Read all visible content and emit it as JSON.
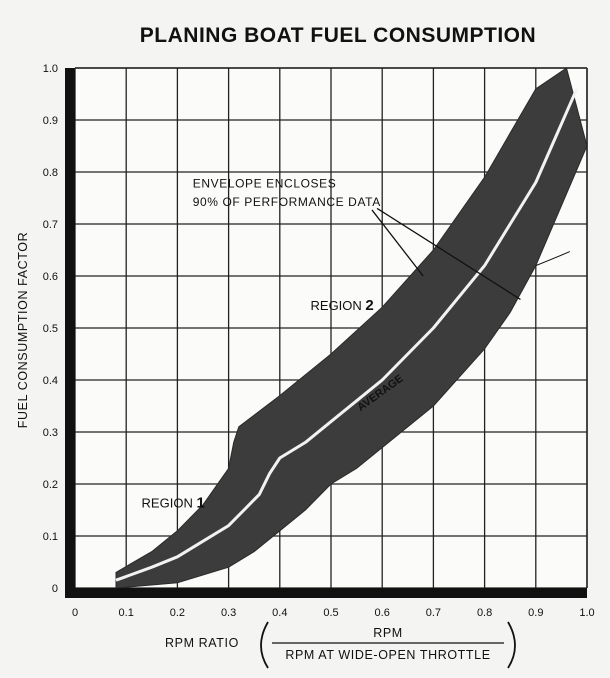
{
  "chart_data": {
    "type": "area",
    "title": "PLANING BOAT FUEL CONSUMPTION",
    "ylabel": "FUEL CONSUMPTION FACTOR",
    "xlabel": "RPM RATIO",
    "xlabel_fraction": {
      "numerator": "RPM",
      "denominator": "RPM AT WIDE-OPEN THROTTLE"
    },
    "xlim": [
      0,
      1.0
    ],
    "ylim": [
      0,
      1.0
    ],
    "x_ticks": [
      "0",
      "0.1",
      "0.2",
      "0.3",
      "0.4",
      "0.5",
      "0.6",
      "0.7",
      "0.8",
      "0.9",
      "1.0"
    ],
    "y_ticks": [
      "0",
      "0.1",
      "0.2",
      "0.3",
      "0.4",
      "0.5",
      "0.6",
      "0.7",
      "0.8",
      "0.9",
      "1.0"
    ],
    "grid": true,
    "envelope_upper": {
      "x": [
        0.08,
        0.15,
        0.2,
        0.25,
        0.3,
        0.31,
        0.32,
        0.4,
        0.5,
        0.6,
        0.7,
        0.8,
        0.9,
        0.96
      ],
      "y": [
        0.03,
        0.07,
        0.11,
        0.16,
        0.23,
        0.28,
        0.31,
        0.37,
        0.45,
        0.54,
        0.65,
        0.79,
        0.96,
        1.0
      ]
    },
    "envelope_lower": {
      "x": [
        0.08,
        0.2,
        0.3,
        0.35,
        0.4,
        0.45,
        0.5,
        0.55,
        0.6,
        0.7,
        0.8,
        0.85,
        0.9,
        1.0
      ],
      "y": [
        0.0,
        0.01,
        0.04,
        0.07,
        0.11,
        0.15,
        0.2,
        0.23,
        0.27,
        0.35,
        0.46,
        0.53,
        0.62,
        0.85
      ]
    },
    "series": [
      {
        "name": "AVERAGE",
        "x": [
          0.08,
          0.15,
          0.2,
          0.25,
          0.3,
          0.33,
          0.36,
          0.38,
          0.4,
          0.45,
          0.5,
          0.6,
          0.7,
          0.8,
          0.9,
          0.98
        ],
        "y": [
          0.015,
          0.04,
          0.06,
          0.09,
          0.12,
          0.15,
          0.18,
          0.22,
          0.25,
          0.28,
          0.32,
          0.4,
          0.5,
          0.62,
          0.78,
          0.96
        ]
      }
    ],
    "annotations": [
      {
        "text": "ENVELOPE ENCLOSES",
        "x": 0.23,
        "y": 0.77
      },
      {
        "text": "90% OF PERFORMANCE DATA",
        "x": 0.23,
        "y": 0.735
      },
      {
        "text": "REGION",
        "num": "2",
        "x": 0.46,
        "y": 0.535
      },
      {
        "text": "REGION",
        "num": "1",
        "x": 0.13,
        "y": 0.155
      }
    ],
    "average_label": {
      "text": "AVERAGE",
      "x": 0.6,
      "y": 0.37
    }
  }
}
